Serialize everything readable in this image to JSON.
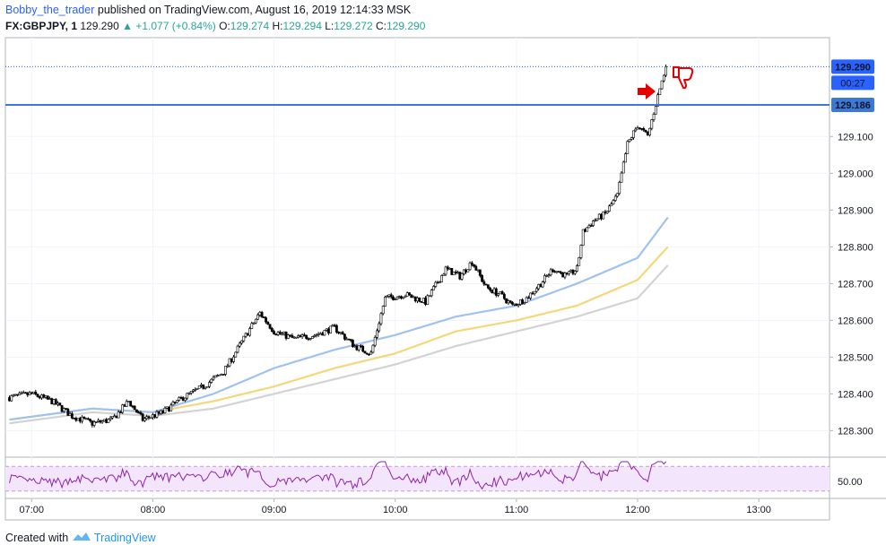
{
  "header": {
    "author": "Bobby_the_trader",
    "published_text": "published on TradingView.com, August 16, 2019 12:14:33 MSK",
    "symbol": "FX:GBPJPY, 1",
    "last": "129.290",
    "change": "+1.077 (+0.84%)",
    "o_label": "O:",
    "o_value": "129.274",
    "h_label": "H:",
    "h_value": "129.294",
    "l_label": "L:",
    "l_value": "129.272",
    "c_label": "C:",
    "c_value": "129.290"
  },
  "price_axis": {
    "ticks": [
      "129.100",
      "129.000",
      "128.900",
      "128.800",
      "128.700",
      "128.600",
      "128.500",
      "128.400",
      "128.300"
    ],
    "last_price_tag": "129.290",
    "countdown_tag": "00:27",
    "level_tag": "129.186"
  },
  "rsi_axis": {
    "tick": "50.00"
  },
  "time_axis": {
    "ticks": [
      "07:00",
      "08:00",
      "09:00",
      "10:00",
      "11:00",
      "12:00",
      "13:00"
    ]
  },
  "footer": {
    "created_with": "Created with",
    "brand": "TradingView"
  },
  "colors": {
    "level_line": "#3c78d8",
    "ma_blue": "#9fc2f0",
    "ma_yellow": "#f5d77a",
    "ma_grey": "#d3d3d3",
    "rsi_line": "#8e24aa",
    "rsi_band": "#f3e5fb",
    "arrow": "#e60000",
    "price_tag": "#2962ff"
  },
  "annotations": [
    "red-arrow-icon",
    "thumbs-down-icon"
  ],
  "chart_data": {
    "type": "candlestick",
    "symbol": "FX:GBPJPY",
    "interval": "1",
    "y_range": [
      128.24,
      129.325
    ],
    "x_range": [
      "06:47",
      "13:35"
    ],
    "horizontal_level": 129.186,
    "last_price": 129.29,
    "close_path": [
      [
        "06:49",
        128.39
      ],
      [
        "07:00",
        128.4
      ],
      [
        "07:10",
        128.38
      ],
      [
        "07:20",
        128.34
      ],
      [
        "07:30",
        128.32
      ],
      [
        "07:40",
        128.33
      ],
      [
        "07:48",
        128.38
      ],
      [
        "07:55",
        128.33
      ],
      [
        "08:05",
        128.35
      ],
      [
        "08:15",
        128.39
      ],
      [
        "08:25",
        128.42
      ],
      [
        "08:35",
        128.46
      ],
      [
        "08:45",
        128.55
      ],
      [
        "08:53",
        128.62
      ],
      [
        "09:00",
        128.57
      ],
      [
        "09:10",
        128.55
      ],
      [
        "09:20",
        128.56
      ],
      [
        "09:30",
        128.58
      ],
      [
        "09:40",
        128.53
      ],
      [
        "09:48",
        128.51
      ],
      [
        "09:55",
        128.66
      ],
      [
        "10:05",
        128.67
      ],
      [
        "10:15",
        128.65
      ],
      [
        "10:25",
        128.74
      ],
      [
        "10:32",
        128.72
      ],
      [
        "10:38",
        128.76
      ],
      [
        "10:45",
        128.69
      ],
      [
        "10:52",
        128.67
      ],
      [
        "10:58",
        128.64
      ],
      [
        "11:05",
        128.66
      ],
      [
        "11:12",
        128.7
      ],
      [
        "11:18",
        128.74
      ],
      [
        "11:25",
        128.72
      ],
      [
        "11:30",
        128.74
      ],
      [
        "11:33",
        128.84
      ],
      [
        "11:38",
        128.87
      ],
      [
        "11:44",
        128.89
      ],
      [
        "11:50",
        128.94
      ],
      [
        "11:55",
        129.08
      ],
      [
        "12:00",
        129.13
      ],
      [
        "12:05",
        129.1
      ],
      [
        "12:10",
        129.21
      ],
      [
        "12:14",
        129.29
      ]
    ],
    "moving_averages": [
      {
        "color": "blue",
        "points": [
          [
            "06:49",
            128.33
          ],
          [
            "07:30",
            128.36
          ],
          [
            "08:00",
            128.35
          ],
          [
            "08:30",
            128.4
          ],
          [
            "09:00",
            128.47
          ],
          [
            "09:30",
            128.52
          ],
          [
            "10:00",
            128.56
          ],
          [
            "10:30",
            128.61
          ],
          [
            "11:00",
            128.64
          ],
          [
            "11:30",
            128.7
          ],
          [
            "12:00",
            128.77
          ],
          [
            "12:15",
            128.88
          ]
        ]
      },
      {
        "color": "yellow",
        "points": [
          [
            "06:49",
            128.33
          ],
          [
            "07:30",
            128.36
          ],
          [
            "08:00",
            128.35
          ],
          [
            "08:30",
            128.38
          ],
          [
            "09:00",
            128.42
          ],
          [
            "09:30",
            128.47
          ],
          [
            "10:00",
            128.51
          ],
          [
            "10:30",
            128.57
          ],
          [
            "11:00",
            128.6
          ],
          [
            "11:30",
            128.64
          ],
          [
            "12:00",
            128.71
          ],
          [
            "12:15",
            128.8
          ]
        ]
      },
      {
        "color": "grey",
        "points": [
          [
            "06:49",
            128.32
          ],
          [
            "07:30",
            128.35
          ],
          [
            "08:00",
            128.34
          ],
          [
            "08:30",
            128.36
          ],
          [
            "09:00",
            128.4
          ],
          [
            "09:30",
            128.44
          ],
          [
            "10:00",
            128.48
          ],
          [
            "10:30",
            128.53
          ],
          [
            "11:00",
            128.57
          ],
          [
            "11:30",
            128.61
          ],
          [
            "12:00",
            128.66
          ],
          [
            "12:15",
            128.75
          ]
        ]
      }
    ],
    "rsi": {
      "reference_level": 50,
      "y_range": [
        32,
        68
      ],
      "band": [
        37,
        63
      ]
    }
  }
}
